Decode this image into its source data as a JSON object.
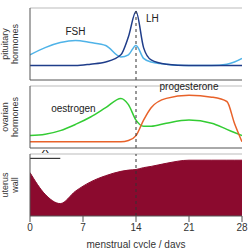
{
  "chart_data": [
    {
      "type": "line",
      "ylabel": "pituitary hormones",
      "x": [
        0,
        2,
        4,
        6,
        8,
        10,
        12,
        13,
        14,
        15,
        16,
        18,
        21,
        24,
        26,
        27,
        28
      ],
      "series": [
        {
          "name": "FSH",
          "color": "#4fb3e8",
          "values": [
            0.35,
            0.45,
            0.52,
            0.55,
            0.52,
            0.48,
            0.32,
            0.35,
            0.48,
            0.3,
            0.25,
            0.22,
            0.2,
            0.2,
            0.22,
            0.25,
            0.3
          ]
        },
        {
          "name": "LH",
          "color": "#1f3d8a",
          "values": [
            0.2,
            0.2,
            0.2,
            0.2,
            0.22,
            0.25,
            0.35,
            0.6,
            0.95,
            0.45,
            0.28,
            0.22,
            0.2,
            0.2,
            0.2,
            0.2,
            0.2
          ]
        }
      ],
      "xlim": [
        0,
        28
      ],
      "ylim": [
        0,
        1
      ],
      "yticks": [],
      "vlines": [
        14
      ],
      "tick_labels": false
    },
    {
      "type": "line",
      "ylabel": "ovarian hormones",
      "x": [
        0,
        2,
        4,
        6,
        8,
        10,
        12,
        13,
        14,
        15,
        16,
        18,
        21,
        24,
        26,
        27,
        28
      ],
      "series": [
        {
          "name": "oestrogen",
          "color": "#33cc33",
          "values": [
            0.2,
            0.22,
            0.28,
            0.38,
            0.5,
            0.65,
            0.8,
            0.7,
            0.45,
            0.35,
            0.35,
            0.4,
            0.45,
            0.4,
            0.3,
            0.25,
            0.2
          ]
        },
        {
          "name": "progesterone",
          "color": "#e8622a",
          "values": [
            0.1,
            0.1,
            0.1,
            0.1,
            0.1,
            0.1,
            0.1,
            0.12,
            0.2,
            0.45,
            0.65,
            0.8,
            0.85,
            0.82,
            0.75,
            0.4,
            0.1
          ]
        }
      ],
      "xlim": [
        0,
        28
      ],
      "ylim": [
        0,
        1
      ],
      "yticks": [],
      "vlines": [
        14
      ],
      "tick_labels": false
    },
    {
      "type": "area",
      "ylabel": "uterus wall",
      "xlabel": "menstrual cycle / days",
      "x": [
        0,
        2,
        4,
        6,
        8,
        10,
        12,
        13,
        14,
        15,
        16,
        18,
        21,
        24,
        26,
        27,
        28
      ],
      "series": [
        {
          "color": "#8b0a2e",
          "values": [
            0.7,
            0.35,
            0.2,
            0.4,
            0.55,
            0.65,
            0.72,
            0.74,
            0.75,
            0.78,
            0.8,
            0.85,
            0.9,
            0.9,
            0.9,
            0.9,
            0.9
          ]
        }
      ],
      "annotations": [
        {
          "text": "X",
          "x_start": 0,
          "x_end": 4
        }
      ],
      "xlim": [
        0,
        28
      ],
      "xticks": [
        0,
        7,
        14,
        21,
        28
      ],
      "ylim": [
        0,
        1
      ],
      "yticks": [],
      "vlines": [
        14
      ],
      "tick_labels": "x"
    }
  ]
}
